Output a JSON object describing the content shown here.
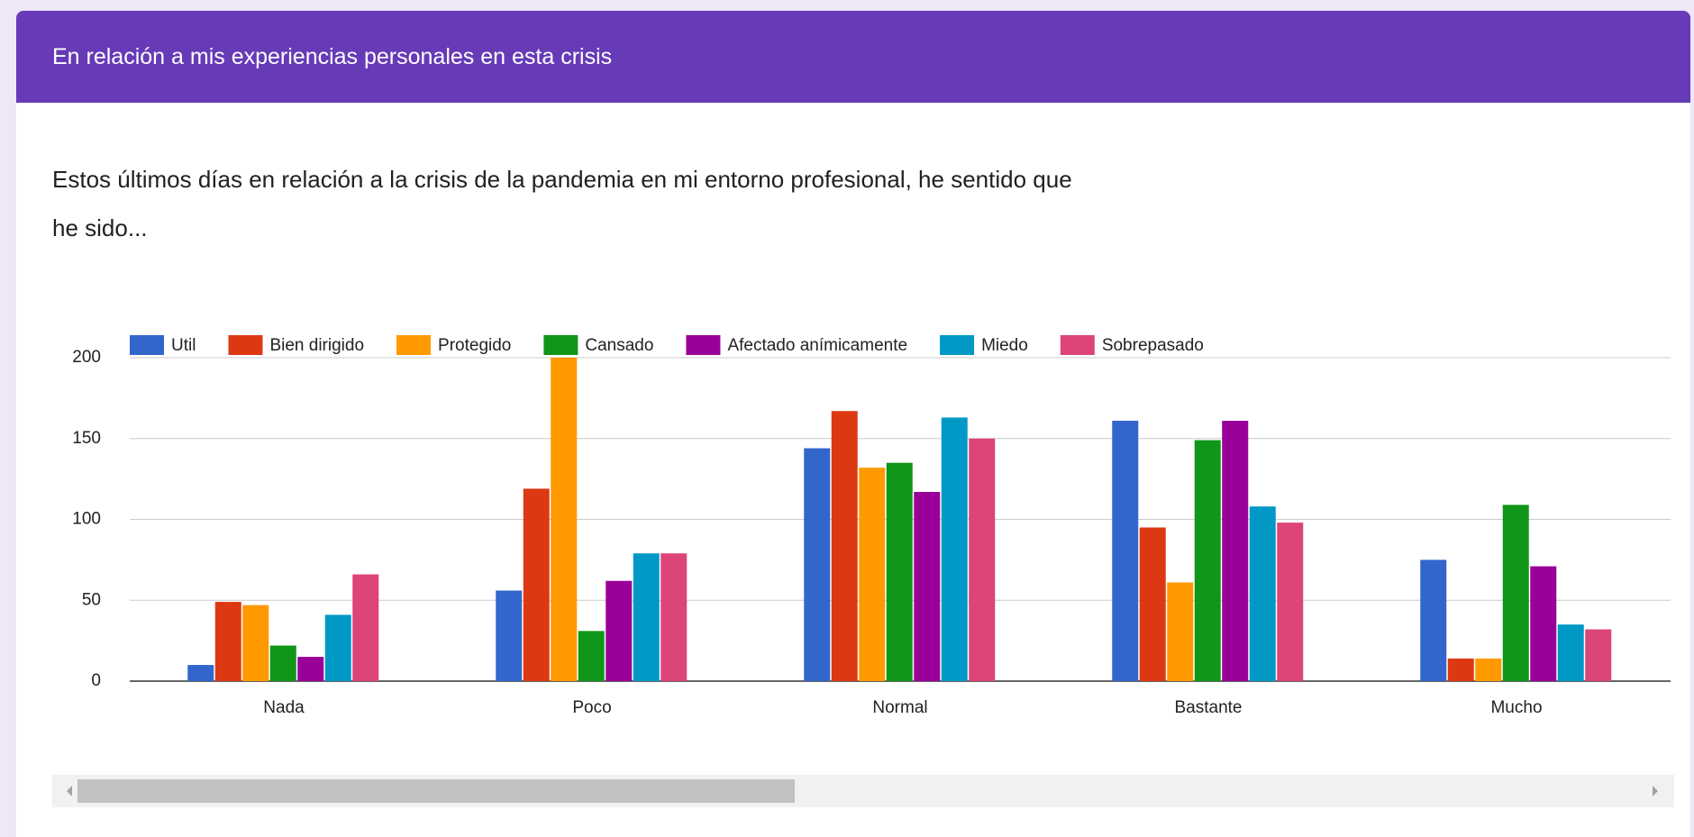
{
  "header": {
    "title": "En relación a mis experiencias personales en esta crisis"
  },
  "question": "Estos últimos días en relación a la crisis de la pandemia en mi entorno profesional, he sentido que he sido...",
  "chart_data": {
    "type": "bar",
    "categories": [
      "Nada",
      "Poco",
      "Normal",
      "Bastante",
      "Mucho"
    ],
    "series": [
      {
        "name": "Util",
        "color": "#3366cc",
        "values": [
          10,
          56,
          144,
          161,
          75
        ]
      },
      {
        "name": "Bien dirigido",
        "color": "#dc3912",
        "values": [
          49,
          119,
          167,
          95,
          14
        ]
      },
      {
        "name": "Protegido",
        "color": "#ff9900",
        "values": [
          47,
          200,
          132,
          61,
          14
        ]
      },
      {
        "name": "Cansado",
        "color": "#109618",
        "values": [
          22,
          31,
          135,
          149,
          109
        ]
      },
      {
        "name": "Afectado anímicamente",
        "color": "#990099",
        "values": [
          15,
          62,
          117,
          161,
          71
        ]
      },
      {
        "name": "Miedo",
        "color": "#0099c6",
        "values": [
          41,
          79,
          163,
          108,
          35
        ]
      },
      {
        "name": "Sobrepasado",
        "color": "#dd4477",
        "values": [
          66,
          79,
          150,
          98,
          32
        ]
      }
    ],
    "ylim": [
      0,
      200
    ],
    "yticks": [
      0,
      50,
      100,
      150,
      200
    ],
    "grid": true,
    "legend": "top"
  }
}
